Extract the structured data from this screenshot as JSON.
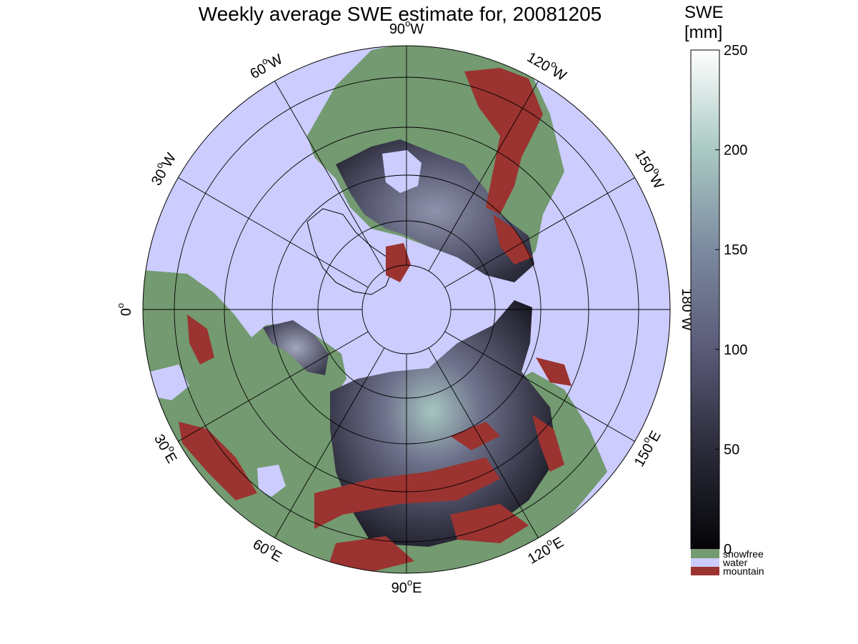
{
  "title": "Weekly average SWE estimate for, 20081205",
  "colorbar": {
    "title_line1": "SWE",
    "title_line2": "[mm]",
    "ticks": [
      0,
      50,
      100,
      150,
      200,
      250
    ],
    "range": [
      0,
      250
    ],
    "gradient_colors": [
      "#050508",
      "#2b2b3a",
      "#5a5a78",
      "#7c8aa0",
      "#a9c9c3",
      "#ffffff"
    ]
  },
  "legend": [
    {
      "label": "snowfree",
      "color": "#739a70"
    },
    {
      "label": "water",
      "color": "#ccccff"
    },
    {
      "label": "mountain",
      "color": "#9b3330"
    }
  ],
  "longitude_labels": [
    {
      "text": "90",
      "suffix": "W",
      "bearing": 0
    },
    {
      "text": "120",
      "suffix": "W",
      "bearing": 30
    },
    {
      "text": "150",
      "suffix": "W",
      "bearing": 60
    },
    {
      "text": "180",
      "suffix": "W",
      "bearing": 90
    },
    {
      "text": "150",
      "suffix": "E",
      "bearing": 120
    },
    {
      "text": "120",
      "suffix": "E",
      "bearing": 150
    },
    {
      "text": "90",
      "suffix": "E",
      "bearing": 180
    },
    {
      "text": "60",
      "suffix": "E",
      "bearing": 210
    },
    {
      "text": "30",
      "suffix": "E",
      "bearing": 240
    },
    {
      "text": "0",
      "suffix": "",
      "bearing": 270
    },
    {
      "text": "30",
      "suffix": "W",
      "bearing": 300
    },
    {
      "text": "60",
      "suffix": "W",
      "bearing": 330
    }
  ],
  "colors": {
    "water": "#ccccff",
    "snowfree": "#739a70",
    "mountain": "#9b3330",
    "grid": "#000000"
  }
}
